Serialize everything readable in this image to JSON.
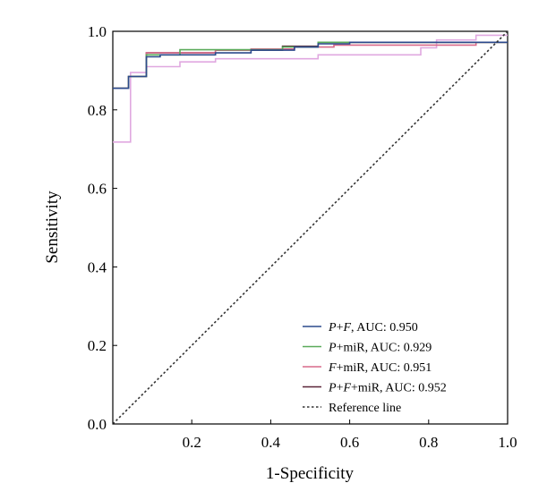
{
  "chart_data": {
    "type": "line",
    "xlabel": "1-Specificity",
    "ylabel": "Sensitivity",
    "xlim": [
      0,
      1
    ],
    "ylim": [
      0,
      1
    ],
    "x_ticks": [
      "0.2",
      "0.4",
      "0.6",
      "0.8",
      "1.0"
    ],
    "y_ticks": [
      "0.0",
      "0.2",
      "0.4",
      "0.6",
      "0.8",
      "1.0"
    ],
    "grid": false,
    "legend_position": "bottom-right",
    "series": [
      {
        "name": "P+F, AUC: 0.950",
        "name_parts": [
          {
            "t": "P",
            "i": true
          },
          {
            "t": "+",
            "i": false
          },
          {
            "t": "F",
            "i": true
          },
          {
            "t": ", AUC: 0.950",
            "i": false
          }
        ],
        "color": "#2c4a8c",
        "points": [
          [
            0,
            0.855
          ],
          [
            0.04,
            0.855
          ],
          [
            0.04,
            0.885
          ],
          [
            0.085,
            0.885
          ],
          [
            0.085,
            0.935
          ],
          [
            0.12,
            0.935
          ],
          [
            0.12,
            0.94
          ],
          [
            0.26,
            0.94
          ],
          [
            0.26,
            0.945
          ],
          [
            0.35,
            0.945
          ],
          [
            0.35,
            0.952
          ],
          [
            0.46,
            0.952
          ],
          [
            0.46,
            0.96
          ],
          [
            0.52,
            0.96
          ],
          [
            0.52,
            0.968
          ],
          [
            0.6,
            0.968
          ],
          [
            0.6,
            0.972
          ],
          [
            1.0,
            0.972
          ]
        ]
      },
      {
        "name": "P+miR, AUC: 0.929",
        "name_parts": [
          {
            "t": "P",
            "i": true
          },
          {
            "t": "+miR, AUC: 0.929",
            "i": false
          }
        ],
        "color": "#5aaa5a",
        "points": [
          [
            0,
            0.855
          ],
          [
            0.04,
            0.855
          ],
          [
            0.04,
            0.885
          ],
          [
            0.085,
            0.885
          ],
          [
            0.085,
            0.94
          ],
          [
            0.17,
            0.94
          ],
          [
            0.17,
            0.953
          ],
          [
            0.43,
            0.953
          ],
          [
            0.43,
            0.96
          ],
          [
            0.52,
            0.96
          ],
          [
            0.52,
            0.972
          ],
          [
            1.0,
            0.972
          ]
        ]
      },
      {
        "name": "F+miR, AUC: 0.951",
        "name_parts": [
          {
            "t": "F",
            "i": true
          },
          {
            "t": "+miR, AUC: 0.951",
            "i": false
          }
        ],
        "color": "#d96a8a",
        "points": [
          [
            0,
            0.855
          ],
          [
            0.04,
            0.855
          ],
          [
            0.04,
            0.885
          ],
          [
            0.085,
            0.885
          ],
          [
            0.085,
            0.945
          ],
          [
            0.26,
            0.945
          ],
          [
            0.26,
            0.952
          ],
          [
            0.35,
            0.952
          ],
          [
            0.35,
            0.955
          ],
          [
            0.46,
            0.955
          ],
          [
            0.46,
            0.96
          ],
          [
            0.56,
            0.96
          ],
          [
            0.56,
            0.965
          ],
          [
            0.92,
            0.965
          ],
          [
            0.92,
            0.972
          ],
          [
            1.0,
            0.972
          ]
        ]
      },
      {
        "name": "P+F+miR, AUC: 0.952",
        "name_parts": [
          {
            "t": "P",
            "i": true
          },
          {
            "t": "+",
            "i": false
          },
          {
            "t": "F",
            "i": true
          },
          {
            "t": "+miR, AUC: 0.952",
            "i": false
          }
        ],
        "color": "#5a2438",
        "points": [
          [
            0,
            0.855
          ],
          [
            0.04,
            0.855
          ],
          [
            0.04,
            0.885
          ],
          [
            0.085,
            0.885
          ],
          [
            0.085,
            0.945
          ],
          [
            0.26,
            0.945
          ],
          [
            0.26,
            0.952
          ],
          [
            0.43,
            0.952
          ],
          [
            0.43,
            0.962
          ],
          [
            0.52,
            0.962
          ],
          [
            0.52,
            0.972
          ],
          [
            1.0,
            0.972
          ]
        ]
      },
      {
        "name": "",
        "name_parts": [],
        "color": "#e0a8e0",
        "points": [
          [
            0,
            0.718
          ],
          [
            0.045,
            0.718
          ],
          [
            0.045,
            0.895
          ],
          [
            0.085,
            0.895
          ],
          [
            0.085,
            0.91
          ],
          [
            0.17,
            0.91
          ],
          [
            0.17,
            0.922
          ],
          [
            0.26,
            0.922
          ],
          [
            0.26,
            0.93
          ],
          [
            0.52,
            0.93
          ],
          [
            0.52,
            0.94
          ],
          [
            0.78,
            0.94
          ],
          [
            0.78,
            0.958
          ],
          [
            0.82,
            0.958
          ],
          [
            0.82,
            0.978
          ],
          [
            0.92,
            0.978
          ],
          [
            0.92,
            0.99
          ],
          [
            1.0,
            0.99
          ]
        ]
      }
    ],
    "reference_line": {
      "name": "Reference line",
      "color": "#333333",
      "points": [
        [
          0,
          0
        ],
        [
          1,
          1
        ]
      ]
    }
  }
}
